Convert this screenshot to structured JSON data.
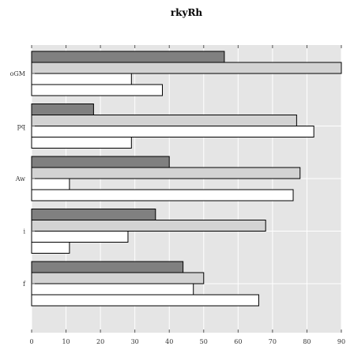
{
  "chart_data": {
    "type": "bar",
    "orientation": "horizontal",
    "title": "rkyRh",
    "xlabel": "",
    "ylabel": "",
    "categories": [
      "oGM",
      "pq",
      "Aw",
      "i",
      "f"
    ],
    "series": [
      {
        "values": [
          56,
          18,
          40,
          36,
          44
        ],
        "color": "#808080"
      },
      {
        "values": [
          90,
          77,
          78,
          68,
          50
        ],
        "color": "#d3d3d3"
      },
      {
        "values": [
          29,
          82,
          11,
          28,
          47
        ],
        "color": "#ffffff"
      },
      {
        "values": [
          38,
          29,
          76,
          11,
          66
        ],
        "color": "#ffffff"
      }
    ],
    "xlim": [
      0,
      90
    ],
    "xticks": [
      0,
      10,
      20,
      30,
      40,
      50,
      60,
      70,
      80,
      90
    ],
    "grid": true,
    "background": "#e5e5e5"
  }
}
